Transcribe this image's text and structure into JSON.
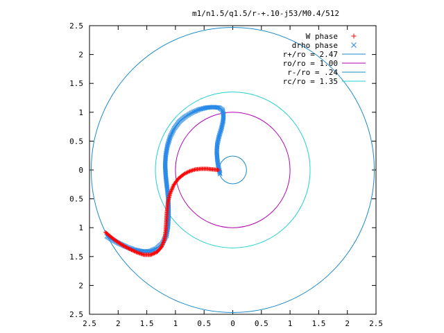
{
  "chart_data": {
    "type": "scatter",
    "title": "m1/n1.5/q1.5/r-+.10-j53/M0.4/512",
    "xlabel": "",
    "ylabel": "",
    "xlim": [
      -2.5,
      2.5
    ],
    "ylim": [
      -2.5,
      2.5
    ],
    "x_tick_values": [
      -2.5,
      -2,
      -1.5,
      -1,
      -0.5,
      0,
      0.5,
      1,
      1.5,
      2,
      2.5
    ],
    "x_tick_labels": [
      "2.5",
      "2",
      "1.5",
      "1",
      "0.5",
      "0",
      "0.5",
      "1",
      "1.5",
      "2",
      "2.5"
    ],
    "y_tick_values": [
      2.5,
      2,
      1.5,
      1,
      0.5,
      0,
      -0.5,
      -1,
      -1.5,
      -2,
      -2.5
    ],
    "y_tick_labels": [
      "2.5",
      "2",
      "1.5",
      "1",
      "0.5",
      "0",
      "0.5",
      "1",
      "1.5",
      "2",
      "2.5"
    ],
    "grid": false,
    "legend_position": "top-right",
    "series": [
      {
        "name": "W phase",
        "kind": "points",
        "marker": "plus",
        "color": "#ff0000",
        "points": [
          [
            -0.25,
            0.0
          ],
          [
            -0.35,
            0.01
          ],
          [
            -0.45,
            0.02
          ],
          [
            -0.55,
            0.02
          ],
          [
            -0.65,
            0.01
          ],
          [
            -0.75,
            -0.02
          ],
          [
            -0.85,
            -0.07
          ],
          [
            -0.95,
            -0.15
          ],
          [
            -1.03,
            -0.26
          ],
          [
            -1.09,
            -0.4
          ],
          [
            -1.13,
            -0.55
          ],
          [
            -1.15,
            -0.72
          ],
          [
            -1.16,
            -0.9
          ],
          [
            -1.17,
            -1.05
          ],
          [
            -1.19,
            -1.2
          ],
          [
            -1.24,
            -1.33
          ],
          [
            -1.32,
            -1.42
          ],
          [
            -1.43,
            -1.47
          ],
          [
            -1.55,
            -1.47
          ],
          [
            -1.67,
            -1.43
          ],
          [
            -1.8,
            -1.37
          ],
          [
            -1.93,
            -1.3
          ],
          [
            -2.05,
            -1.22
          ],
          [
            -2.15,
            -1.14
          ],
          [
            -2.22,
            -1.08
          ]
        ]
      },
      {
        "name": "drho phase",
        "kind": "points",
        "marker": "cross",
        "color": "#2a8ae8",
        "points": [
          [
            -0.22,
            -0.07
          ],
          [
            -0.25,
            0.05
          ],
          [
            -0.27,
            0.18
          ],
          [
            -0.28,
            0.32
          ],
          [
            -0.27,
            0.45
          ],
          [
            -0.24,
            0.58
          ],
          [
            -0.2,
            0.71
          ],
          [
            -0.17,
            0.84
          ],
          [
            -0.16,
            0.95
          ],
          [
            -0.18,
            1.04
          ],
          [
            -0.24,
            1.08
          ],
          [
            -0.34,
            1.09
          ],
          [
            -0.46,
            1.08
          ],
          [
            -0.58,
            1.05
          ],
          [
            -0.7,
            1.0
          ],
          [
            -0.82,
            0.93
          ],
          [
            -0.93,
            0.84
          ],
          [
            -1.02,
            0.72
          ],
          [
            -1.09,
            0.58
          ],
          [
            -1.14,
            0.42
          ],
          [
            -1.17,
            0.25
          ],
          [
            -1.18,
            0.08
          ],
          [
            -1.17,
            -0.1
          ],
          [
            -1.15,
            -0.28
          ],
          [
            -1.13,
            -0.45
          ],
          [
            -1.12,
            -0.62
          ],
          [
            -1.12,
            -0.8
          ],
          [
            -1.13,
            -0.98
          ],
          [
            -1.16,
            -1.14
          ],
          [
            -1.23,
            -1.27
          ],
          [
            -1.33,
            -1.36
          ],
          [
            -1.45,
            -1.41
          ],
          [
            -1.58,
            -1.41
          ],
          [
            -1.72,
            -1.38
          ],
          [
            -1.86,
            -1.33
          ],
          [
            -1.99,
            -1.27
          ],
          [
            -2.1,
            -1.21
          ],
          [
            -2.2,
            -1.15
          ]
        ]
      },
      {
        "name": "r+/ro = 2.47",
        "kind": "circle",
        "radius": 2.47,
        "color": "#1a8ac8"
      },
      {
        "name": "ro/ro = 1.00",
        "kind": "circle",
        "radius": 1.0,
        "color": "#b000b0"
      },
      {
        "name": "r-/ro = .24",
        "kind": "circle",
        "radius": 0.24,
        "color": "#1a8ac8"
      },
      {
        "name": "rc/ro = 1.35",
        "kind": "circle",
        "radius": 1.35,
        "color": "#20d0d0"
      }
    ]
  }
}
